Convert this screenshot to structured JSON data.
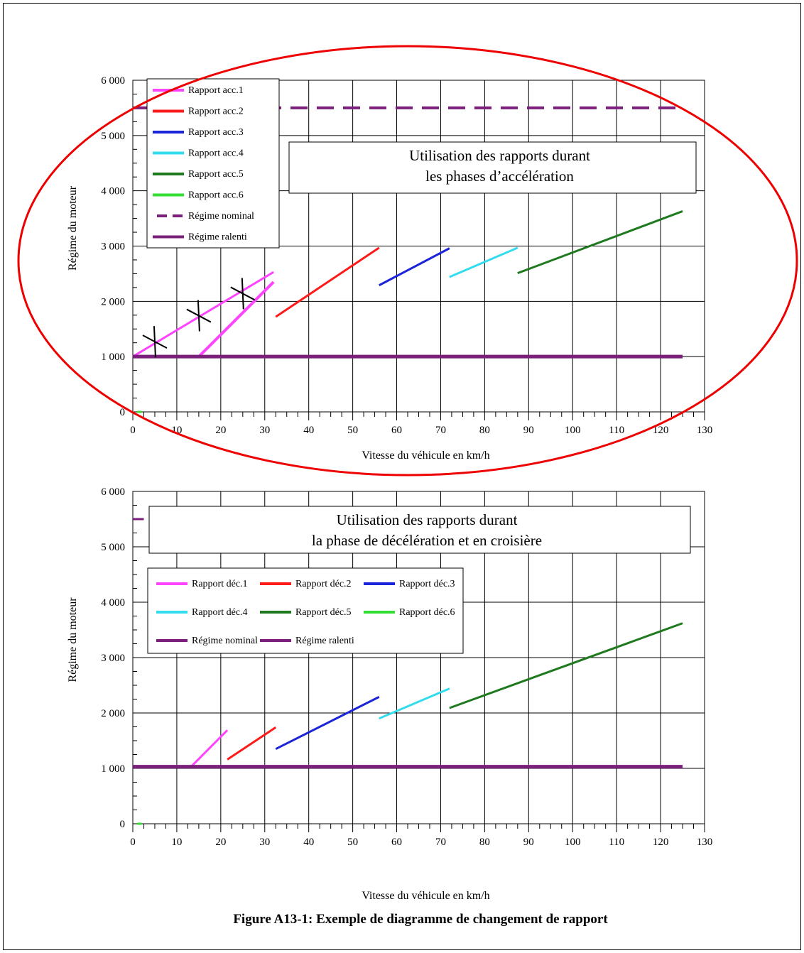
{
  "caption": "Figure A13-1: Exemple de diagramme de changement de rapport",
  "chart_data": [
    {
      "type": "line",
      "title": "",
      "annotation_line1": "Utilisation des rapports durant",
      "annotation_line2": "les phases d’accélération",
      "xlabel": "Vitesse du véhicule en km/h",
      "ylabel": "Régime du moteur",
      "xlim": [
        0,
        130
      ],
      "ylim": [
        0,
        6000
      ],
      "x_ticks": [
        "0",
        "10",
        "20",
        "30",
        "40",
        "50",
        "60",
        "70",
        "80",
        "90",
        "100",
        "110",
        "120",
        "130"
      ],
      "y_ticks": [
        "0",
        "1 000",
        "2 000",
        "3 000",
        "4 000",
        "5 000",
        "6 000"
      ],
      "grid": true,
      "legend_position": "top-left",
      "series": [
        {
          "name": "Rapport acc.1",
          "color": "#ff44ff",
          "dash": "solid",
          "segments": [
            [
              [
                0,
                1000
              ],
              [
                32,
                2530
              ]
            ],
            [
              [
                15,
                1000
              ],
              [
                32,
                2350
              ]
            ]
          ]
        },
        {
          "name": "Rapport acc.2",
          "color": "#ff1a1a",
          "dash": "solid",
          "segments": [
            [
              [
                32.5,
                1720
              ],
              [
                56,
                2970
              ]
            ]
          ]
        },
        {
          "name": "Rapport acc.3",
          "color": "#1a24d8",
          "dash": "solid",
          "segments": [
            [
              [
                56,
                2290
              ],
              [
                72,
                2960
              ]
            ]
          ]
        },
        {
          "name": "Rapport acc.4",
          "color": "#33ddee",
          "dash": "solid",
          "segments": [
            [
              [
                72,
                2440
              ],
              [
                87.5,
                2970
              ]
            ]
          ]
        },
        {
          "name": "Rapport acc.5",
          "color": "#1f7a1f",
          "dash": "solid",
          "segments": [
            [
              [
                87.5,
                2510
              ],
              [
                125,
                3630
              ]
            ]
          ]
        },
        {
          "name": "Rapport acc.6",
          "color": "#33dd33",
          "dash": "solid",
          "segments": [
            [
              [
                1,
                0
              ],
              [
                2,
                0
              ]
            ]
          ]
        },
        {
          "name": "Régime nominal",
          "color": "#7a1f7a",
          "dash": "dashed",
          "segments": [
            [
              [
                0,
                5500
              ],
              [
                125,
                5500
              ]
            ]
          ]
        },
        {
          "name": "Régime ralenti",
          "color": "#7a1f7a",
          "dash": "solid",
          "segments": [
            [
              [
                0,
                1000
              ],
              [
                125,
                1000
              ]
            ]
          ]
        }
      ],
      "markers": [
        [
          5,
          1270
        ],
        [
          15,
          1740
        ],
        [
          25,
          2140
        ]
      ]
    },
    {
      "type": "line",
      "title": "",
      "annotation_line1": "Utilisation des rapports durant",
      "annotation_line2": "la phase de décélération et en croisière",
      "xlabel": "Vitesse du véhicule en km/h",
      "ylabel": "Régime du moteur",
      "xlim": [
        0,
        130
      ],
      "ylim": [
        0,
        6000
      ],
      "x_ticks": [
        "0",
        "10",
        "20",
        "30",
        "40",
        "50",
        "60",
        "70",
        "80",
        "90",
        "100",
        "110",
        "120",
        "130"
      ],
      "y_ticks": [
        "0",
        "1 000",
        "2 000",
        "3 000",
        "4 000",
        "5 000",
        "6 000"
      ],
      "grid": true,
      "legend_position": "center-left",
      "series": [
        {
          "name": "Rapport déc.1",
          "color": "#ff44ff",
          "dash": "solid",
          "segments": [
            [
              [
                13.5,
                1050
              ],
              [
                21.5,
                1690
              ]
            ]
          ]
        },
        {
          "name": "Rapport déc.2",
          "color": "#ff1a1a",
          "dash": "solid",
          "segments": [
            [
              [
                21.5,
                1160
              ],
              [
                32.5,
                1740
              ]
            ]
          ]
        },
        {
          "name": "Rapport déc.3",
          "color": "#1a24d8",
          "dash": "solid",
          "segments": [
            [
              [
                32.5,
                1350
              ],
              [
                56,
                2290
              ]
            ]
          ]
        },
        {
          "name": "Rapport déc.4",
          "color": "#33ddee",
          "dash": "solid",
          "segments": [
            [
              [
                56,
                1900
              ],
              [
                72,
                2440
              ]
            ]
          ]
        },
        {
          "name": "Rapport déc.5",
          "color": "#1f7a1f",
          "dash": "solid",
          "segments": [
            [
              [
                72,
                2090
              ],
              [
                125,
                3620
              ]
            ]
          ]
        },
        {
          "name": "Rapport déc.6",
          "color": "#33dd33",
          "dash": "solid",
          "segments": [
            [
              [
                1,
                0
              ],
              [
                2,
                0
              ]
            ]
          ]
        },
        {
          "name": "Régime nominal",
          "color": "#7a1f7a",
          "dash": "solid",
          "segments": [
            [
              [
                0,
                5500
              ],
              [
                2.5,
                5500
              ]
            ]
          ]
        },
        {
          "name": "Régime ralenti",
          "color": "#7a1f7a",
          "dash": "solid",
          "segments": [
            [
              [
                0,
                1030
              ],
              [
                125,
                1030
              ]
            ]
          ]
        }
      ]
    }
  ]
}
